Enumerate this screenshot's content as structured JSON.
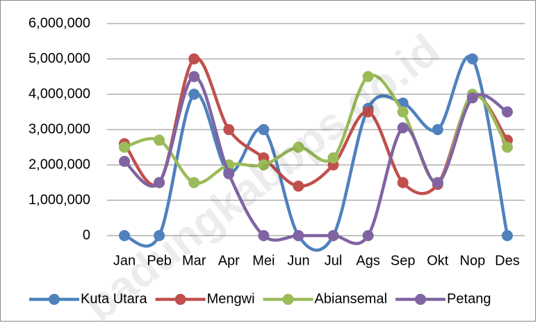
{
  "chart_data": {
    "type": "line",
    "smooth": true,
    "watermark": "badungkabbps.go.id",
    "categories": [
      "Jan",
      "Peb",
      "Mar",
      "Apr",
      "Mei",
      "Jun",
      "Jul",
      "Ags",
      "Sep",
      "Okt",
      "Nop",
      "Des"
    ],
    "series": [
      {
        "name": "Kuta Utara",
        "color": "#4f81bd",
        "values": [
          0,
          0,
          4000000,
          1800000,
          3000000,
          0,
          0,
          3600000,
          3750000,
          3000000,
          5000000,
          0
        ]
      },
      {
        "name": "Mengwi",
        "color": "#c0504d",
        "values": [
          2600000,
          1500000,
          5000000,
          3000000,
          2200000,
          1400000,
          2000000,
          3500000,
          1500000,
          1450000,
          3950000,
          2700000
        ]
      },
      {
        "name": "Abiansemal",
        "color": "#9bbb59",
        "values": [
          2500000,
          2700000,
          1500000,
          2000000,
          2000000,
          2500000,
          2200000,
          4500000,
          3500000,
          1500000,
          4000000,
          2500000
        ]
      },
      {
        "name": "Petang",
        "color": "#8064a2",
        "values": [
          2100000,
          1500000,
          4500000,
          1750000,
          0,
          0,
          0,
          0,
          3050000,
          1500000,
          3900000,
          3500000
        ]
      }
    ],
    "ylim": [
      0,
      6000000
    ],
    "yticks": [
      0,
      {
        "value": 1000000,
        "label": "1,000,000"
      },
      {
        "value": 2000000,
        "label": "2,000,000"
      },
      {
        "value": 3000000,
        "label": "3,000,000"
      },
      {
        "value": 4000000,
        "label": "4,000,000"
      },
      {
        "value": 5000000,
        "label": "5,000,000"
      },
      {
        "value": 6000000,
        "label": "6,000,000"
      }
    ],
    "grid": true,
    "legend": "bottom"
  }
}
